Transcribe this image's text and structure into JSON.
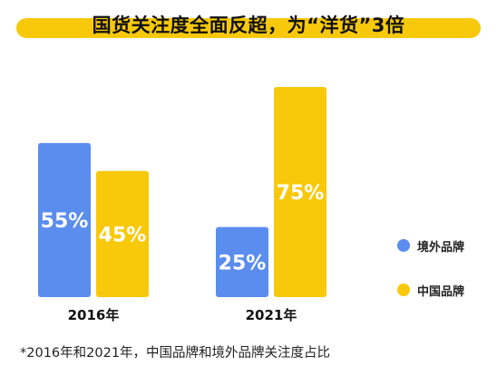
{
  "title": "国货关注度全面反超，为“洋货”3倍",
  "colors": {
    "accent": "#f8c90b",
    "foreign": "#5b8def",
    "china": "#f8c90b"
  },
  "chart_data": {
    "type": "bar",
    "categories": [
      "2016年",
      "2021年"
    ],
    "series": [
      {
        "name": "境外品牌",
        "values": [
          55,
          25
        ],
        "labels": [
          "55%",
          "25%"
        ]
      },
      {
        "name": "中国品牌",
        "values": [
          45,
          75
        ],
        "labels": [
          "45%",
          "75%"
        ]
      }
    ],
    "ylim": [
      0,
      75
    ],
    "legend_position": "right"
  },
  "footnote": "*2016年和2021年，中国品牌和境外品牌关注度占比"
}
